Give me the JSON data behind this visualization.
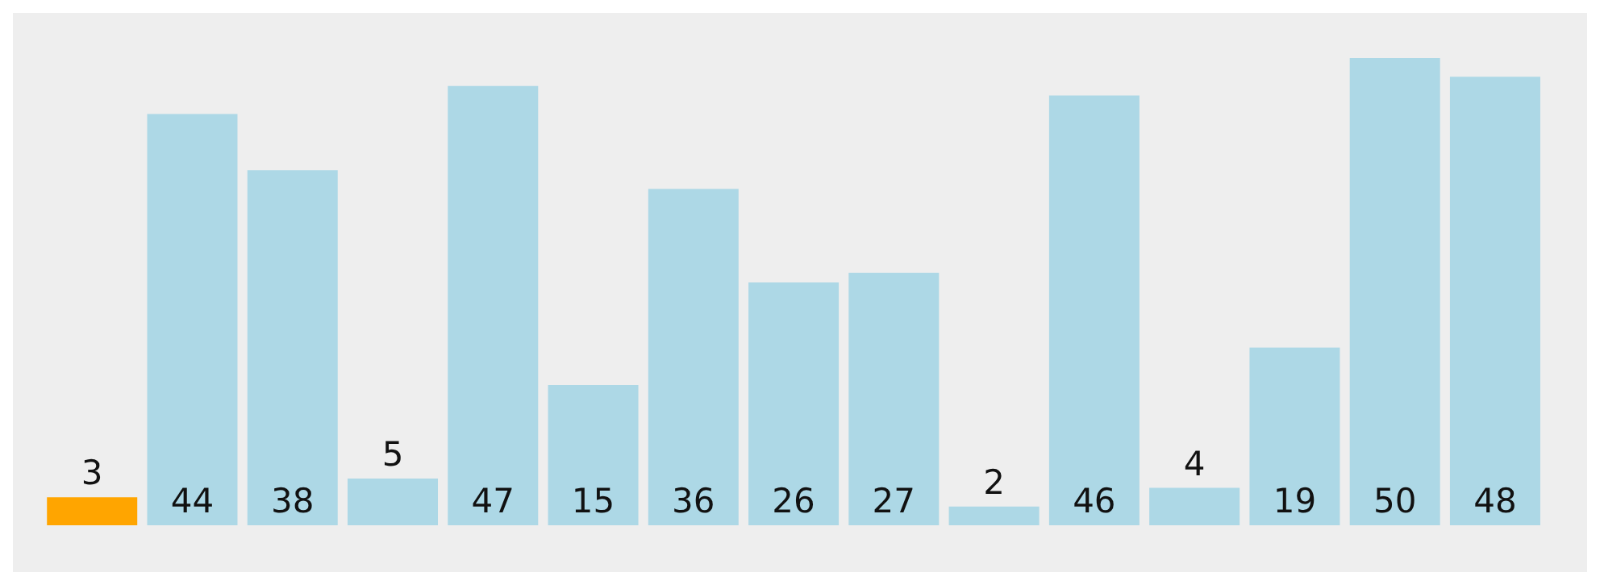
{
  "chart_data": {
    "type": "bar",
    "categories": [
      null,
      null,
      null,
      null,
      null,
      null,
      null,
      null,
      null,
      null,
      null,
      null,
      null,
      null,
      null
    ],
    "values": [
      3,
      44,
      38,
      5,
      47,
      15,
      36,
      26,
      27,
      2,
      46,
      4,
      19,
      50,
      48
    ],
    "colors": [
      "#ffa500",
      "#add8e6",
      "#add8e6",
      "#add8e6",
      "#add8e6",
      "#add8e6",
      "#add8e6",
      "#add8e6",
      "#add8e6",
      "#add8e6",
      "#add8e6",
      "#add8e6",
      "#add8e6",
      "#add8e6",
      "#add8e6"
    ],
    "data_labels": true,
    "grid": false,
    "legend": false
  }
}
